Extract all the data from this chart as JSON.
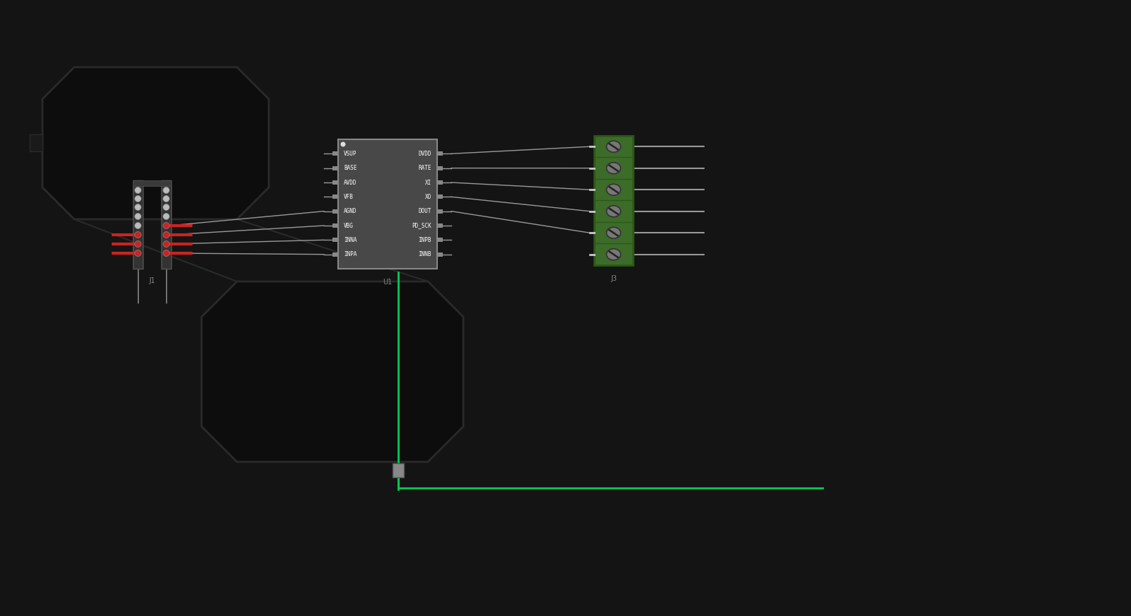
{
  "background_color": "#141414",
  "figsize": [
    15.99,
    8.71
  ],
  "ic_left_pins": [
    "VSUP",
    "BASE",
    "AVDD",
    "VFB",
    "AGND",
    "VBG",
    "INNA",
    "INPA"
  ],
  "ic_right_pins": [
    "DVDD",
    "RATE",
    "XI",
    "XO",
    "DOUT",
    "PD_SCK",
    "INPB",
    "INNB"
  ],
  "ic_body_color": "#484848",
  "ic_pin_line_color": "#999999",
  "ic_text_color": "#ffffff",
  "connector_pin_color_red": "#cc2222",
  "connector_pin_color_white": "#cccccc",
  "terminal_body_color": "#3d6b2a",
  "terminal_screw_color": "#999999",
  "wire_color": "#999999",
  "wire_color_green": "#00cc55",
  "dark_shape_color": "#0d0d0d",
  "dark_shape_edge": "#2a2a2a"
}
